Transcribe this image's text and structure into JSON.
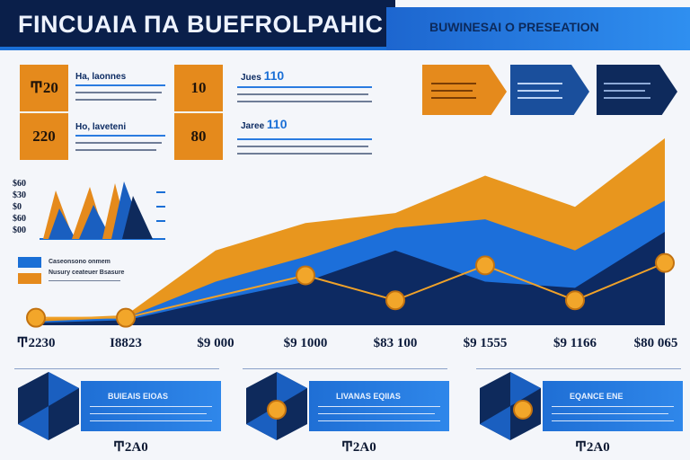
{
  "header": {
    "title": "FINCUAIA ΠΑ BUEFROLPAHIC",
    "subtitle": "BUWINESAI O PRESEATION"
  },
  "stats": [
    {
      "box": "Ͳ20",
      "title": "Ha, laonnes",
      "small_box": "10",
      "small_title": "Jues",
      "small_value": "110"
    },
    {
      "box": "220",
      "title": "Ho, laveteni",
      "small_box": "80",
      "small_title": "Jaree",
      "small_value": "110"
    }
  ],
  "mini_chart": {
    "y_labels": [
      "$60",
      "$30",
      "$0",
      "$60",
      "$00"
    ]
  },
  "legend": [
    {
      "label": "Caseonsono onmem",
      "color": "#1a6fd6"
    },
    {
      "label": "Nusury ceateuer Bsasure",
      "color": "#e58a1c"
    }
  ],
  "chart_data": {
    "type": "area",
    "categories": [
      "Ͳ2230",
      "Ι8823",
      "$9 000",
      "$9 1000",
      "$83 100",
      "$9 1555",
      "$9 1166",
      "$80 065"
    ],
    "series": [
      {
        "values": [
          5,
          8,
          60,
          82,
          90,
          120,
          95,
          150
        ]
      },
      {
        "values": [
          3,
          6,
          35,
          55,
          78,
          85,
          60,
          100
        ]
      },
      {
        "values": [
          2,
          4,
          20,
          35,
          60,
          35,
          30,
          75
        ]
      }
    ],
    "markers": [
      {
        "category": "Ͳ2230",
        "value": 6
      },
      {
        "category": "Ι8823",
        "value": 6
      },
      {
        "category": "$9 1000",
        "value": 40
      },
      {
        "category": "$83 100",
        "value": 20
      },
      {
        "category": "$9 1555",
        "value": 48
      },
      {
        "category": "$9 1166",
        "value": 20
      },
      {
        "category": "$80 065",
        "value": 50
      }
    ]
  },
  "cards": [
    {
      "title": "BUIEAIS EIOAS",
      "bottom": "Ͳ2Α0"
    },
    {
      "title": "LIVANAS EQIIAS",
      "bottom": "Ͳ2Α0"
    },
    {
      "title": "EQANCE ENE",
      "bottom": "Ͳ2Α0"
    }
  ],
  "colors": {
    "navy": "#0a1f4a",
    "blue": "#1a6fd6",
    "orange": "#e58a1c"
  }
}
